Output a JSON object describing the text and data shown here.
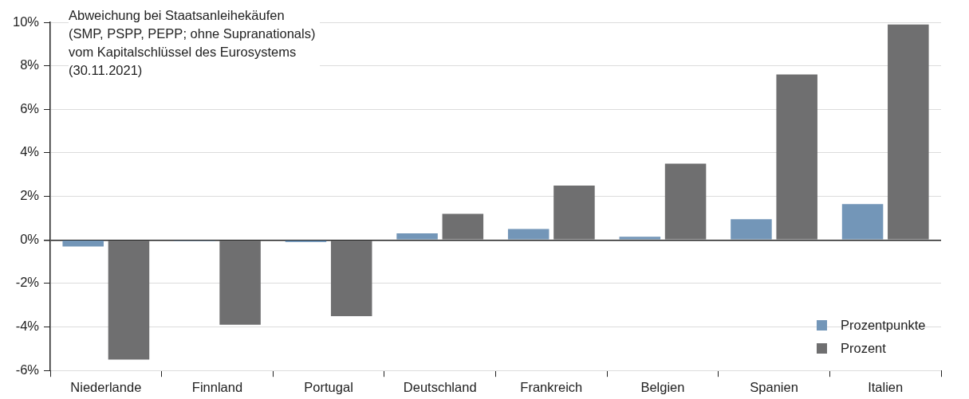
{
  "chart_data": {
    "type": "bar",
    "title": "Abweichung bei Staatsanleihekäufen\n(SMP, PSPP, PEPP; ohne Supranationals)\nvom Kapitalschlüssel des Eurosystems\n(30.11.2021)",
    "categories": [
      "Niederlande",
      "Finnland",
      "Portugal",
      "Deutschland",
      "Frankreich",
      "Belgien",
      "Spanien",
      "Italien"
    ],
    "series": [
      {
        "name": "Prozentpunkte",
        "color": "#7396b8",
        "values": [
          -0.3,
          -0.05,
          -0.1,
          0.3,
          0.5,
          0.15,
          0.95,
          1.65
        ]
      },
      {
        "name": "Prozent",
        "color": "#6f6f70",
        "values": [
          -5.5,
          -3.9,
          -3.5,
          1.2,
          2.5,
          3.5,
          7.6,
          9.9
        ]
      }
    ],
    "ylim": [
      -6,
      10
    ],
    "yticks": [
      {
        "value": -6,
        "label": "-6%"
      },
      {
        "value": -4,
        "label": "-4%"
      },
      {
        "value": -2,
        "label": "-2%"
      },
      {
        "value": 0,
        "label": "0%"
      },
      {
        "value": 2,
        "label": "2%"
      },
      {
        "value": 4,
        "label": "4%"
      },
      {
        "value": 6,
        "label": "6%"
      },
      {
        "value": 8,
        "label": "8%"
      },
      {
        "value": 10,
        "label": "10%"
      }
    ],
    "grid": "y",
    "legend": "bottom right"
  }
}
